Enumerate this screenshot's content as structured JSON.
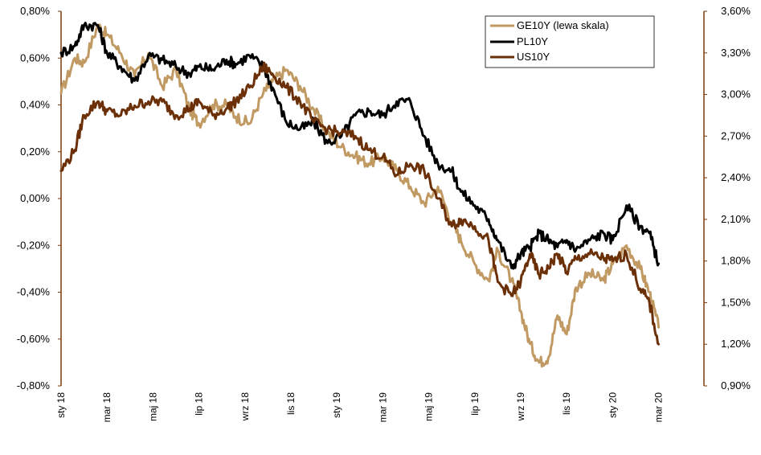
{
  "chart_data": {
    "type": "line",
    "title": "",
    "x_labels": [
      "sty 18",
      "mar 18",
      "maj 18",
      "lip 18",
      "wrz 18",
      "lis 18",
      "sty 19",
      "mar 19",
      "maj 19",
      "lip 19",
      "wrz 19",
      "lis 19",
      "sty 20",
      "mar 20"
    ],
    "y_left": {
      "min": -0.8,
      "max": 0.8,
      "step": 0.2,
      "tick_labels": [
        "-0,80%",
        "-0,60%",
        "-0,40%",
        "-0,20%",
        "0,00%",
        "0,20%",
        "0,40%",
        "0,60%",
        "0,80%"
      ],
      "color": "#7a3a0a"
    },
    "y_right": {
      "min": 0.9,
      "max": 3.6,
      "step": 0.3,
      "tick_labels": [
        "0,90%",
        "1,20%",
        "1,50%",
        "1,80%",
        "2,10%",
        "2,40%",
        "2,70%",
        "3,00%",
        "3,30%",
        "3,60%"
      ],
      "color": "#7a3a0a"
    },
    "legend": {
      "position": "top-right",
      "entries": [
        {
          "label": "GE10Y (lewa skala)",
          "color": "#c19a63"
        },
        {
          "label": "PL10Y",
          "color": "#000000"
        },
        {
          "label": "US10Y",
          "color": "#6b3008"
        }
      ]
    },
    "series": [
      {
        "name": "GE10Y (lewa skala)",
        "axis": "left",
        "color": "#c19a63",
        "x": [
          0,
          0.3,
          0.5,
          0.8,
          1.0,
          1.3,
          1.6,
          1.9,
          2.2,
          2.5,
          2.8,
          3.0,
          3.3,
          3.6,
          3.8,
          4.1,
          4.4,
          4.6,
          4.9,
          5.2,
          5.5,
          5.8,
          6.1,
          6.4,
          6.7,
          7.0,
          7.3,
          7.6,
          7.9,
          8.2,
          8.5,
          8.7,
          9.0,
          9.3,
          9.5,
          9.8,
          10.0,
          10.2,
          10.4,
          10.6,
          10.8,
          11.0,
          11.2,
          11.5,
          11.8,
          12.0,
          12.3,
          12.6,
          12.8,
          13.0
        ],
        "values": [
          0.45,
          0.6,
          0.58,
          0.74,
          0.7,
          0.62,
          0.52,
          0.62,
          0.48,
          0.55,
          0.38,
          0.32,
          0.4,
          0.4,
          0.35,
          0.32,
          0.45,
          0.5,
          0.55,
          0.48,
          0.38,
          0.28,
          0.22,
          0.18,
          0.15,
          0.18,
          0.12,
          0.05,
          -0.02,
          0.05,
          -0.1,
          -0.18,
          -0.28,
          -0.35,
          -0.22,
          -0.35,
          -0.48,
          -0.62,
          -0.7,
          -0.68,
          -0.5,
          -0.58,
          -0.38,
          -0.32,
          -0.35,
          -0.28,
          -0.2,
          -0.3,
          -0.4,
          -0.55
        ]
      },
      {
        "name": "PL10Y",
        "axis": "right",
        "color": "#000000",
        "x": [
          0,
          0.3,
          0.5,
          0.8,
          1.0,
          1.3,
          1.6,
          1.9,
          2.2,
          2.5,
          2.8,
          3.0,
          3.3,
          3.6,
          3.8,
          4.1,
          4.4,
          4.6,
          4.9,
          5.2,
          5.5,
          5.8,
          6.1,
          6.4,
          6.7,
          7.0,
          7.3,
          7.6,
          7.9,
          8.2,
          8.5,
          8.7,
          9.0,
          9.3,
          9.5,
          9.8,
          10.0,
          10.2,
          10.4,
          10.6,
          10.8,
          11.0,
          11.2,
          11.5,
          11.8,
          12.0,
          12.3,
          12.6,
          12.8,
          13.0
        ],
        "values": [
          3.3,
          3.35,
          3.5,
          3.5,
          3.3,
          3.2,
          3.1,
          3.28,
          3.25,
          3.2,
          3.15,
          3.2,
          3.18,
          3.25,
          3.22,
          3.28,
          3.2,
          3.05,
          2.8,
          2.75,
          2.8,
          2.65,
          2.7,
          2.85,
          2.88,
          2.85,
          2.95,
          2.95,
          2.7,
          2.5,
          2.45,
          2.3,
          2.2,
          2.1,
          1.95,
          1.75,
          1.85,
          1.9,
          2.0,
          1.95,
          1.9,
          1.95,
          1.88,
          1.95,
          2.0,
          1.95,
          2.2,
          2.05,
          2.0,
          1.78
        ]
      },
      {
        "name": "US10Y",
        "axis": "right",
        "color": "#6b3008",
        "x": [
          0,
          0.3,
          0.5,
          0.8,
          1.0,
          1.3,
          1.6,
          1.9,
          2.2,
          2.5,
          2.8,
          3.0,
          3.3,
          3.6,
          3.8,
          4.1,
          4.4,
          4.6,
          4.9,
          5.2,
          5.5,
          5.8,
          6.1,
          6.4,
          6.7,
          7.0,
          7.3,
          7.6,
          7.9,
          8.2,
          8.5,
          8.7,
          9.0,
          9.3,
          9.5,
          9.8,
          10.0,
          10.2,
          10.4,
          10.6,
          10.8,
          11.0,
          11.2,
          11.5,
          11.8,
          12.0,
          12.3,
          12.6,
          12.8,
          13.0
        ],
        "values": [
          2.45,
          2.6,
          2.85,
          2.95,
          2.88,
          2.85,
          2.92,
          2.95,
          2.95,
          2.85,
          2.9,
          2.95,
          2.85,
          2.9,
          2.95,
          3.05,
          3.2,
          3.15,
          3.05,
          2.95,
          2.8,
          2.75,
          2.72,
          2.7,
          2.6,
          2.55,
          2.42,
          2.5,
          2.45,
          2.25,
          2.05,
          2.1,
          2.05,
          1.95,
          1.65,
          1.55,
          1.65,
          1.85,
          1.7,
          1.75,
          1.85,
          1.72,
          1.82,
          1.85,
          1.82,
          1.8,
          1.85,
          1.6,
          1.5,
          1.2
        ]
      }
    ]
  }
}
